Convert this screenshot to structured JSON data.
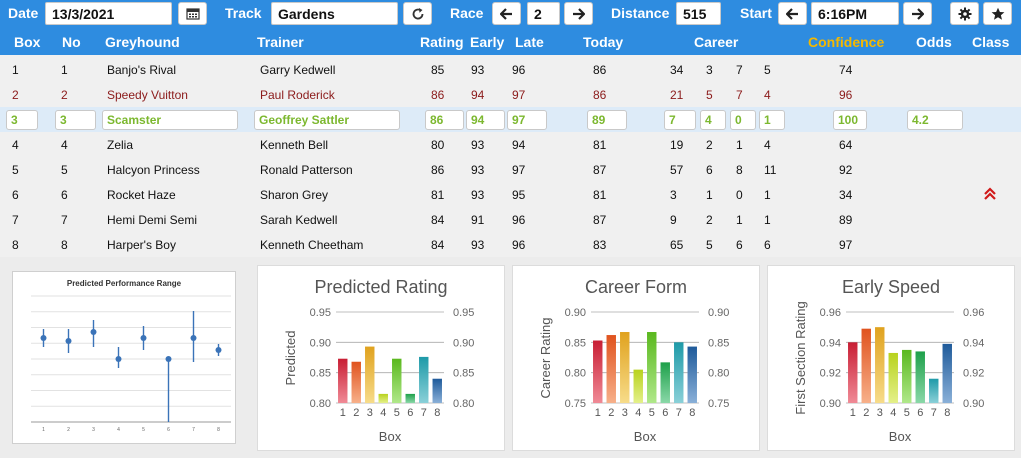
{
  "toolbar": {
    "date_label": "Date",
    "date_value": "13/3/2021",
    "track_label": "Track",
    "track_value": "Gardens",
    "race_label": "Race",
    "race_value": "2",
    "distance_label": "Distance",
    "distance_value": "515",
    "start_label": "Start",
    "start_value": "6:16PM"
  },
  "columns": {
    "box": "Box",
    "no": "No",
    "greyhound": "Greyhound",
    "trainer": "Trainer",
    "rating": "Rating",
    "early": "Early",
    "late": "Late",
    "today": "Today",
    "career": "Career",
    "confidence": "Confidence",
    "odds": "Odds",
    "class": "Class"
  },
  "colors": {
    "header_bg": "#2e8ce0",
    "confidence_header": "#f5b800",
    "selected_text": "#7cb82f",
    "red_text": "#8b1a1a",
    "class_arrow": "#d11a1a"
  },
  "rows": [
    {
      "box": "1",
      "no": "1",
      "greyhound": "Banjo's Rival",
      "trainer": "Garry Kedwell",
      "rating": "85",
      "early": "93",
      "late": "96",
      "today": "86",
      "c1": "34",
      "c2": "3",
      "c3": "7",
      "c4": "5",
      "confidence": "74",
      "odds": ""
    },
    {
      "box": "2",
      "no": "2",
      "greyhound": "Speedy Vuitton",
      "trainer": "Paul Roderick",
      "rating": "86",
      "early": "94",
      "late": "97",
      "today": "86",
      "c1": "21",
      "c2": "5",
      "c3": "7",
      "c4": "4",
      "confidence": "96",
      "odds": ""
    },
    {
      "box": "3",
      "no": "3",
      "greyhound": "Scamster",
      "trainer": "Geoffrey Sattler",
      "rating": "86",
      "early": "94",
      "late": "97",
      "today": "89",
      "c1": "7",
      "c2": "4",
      "c3": "0",
      "c4": "1",
      "confidence": "100",
      "odds": "4.2"
    },
    {
      "box": "4",
      "no": "4",
      "greyhound": "Zelia",
      "trainer": "Kenneth Bell",
      "rating": "80",
      "early": "93",
      "late": "94",
      "today": "81",
      "c1": "19",
      "c2": "2",
      "c3": "1",
      "c4": "4",
      "confidence": "64",
      "odds": ""
    },
    {
      "box": "5",
      "no": "5",
      "greyhound": "Halcyon Princess",
      "trainer": "Ronald Patterson",
      "rating": "86",
      "early": "93",
      "late": "97",
      "today": "87",
      "c1": "57",
      "c2": "6",
      "c3": "8",
      "c4": "11",
      "confidence": "92",
      "odds": ""
    },
    {
      "box": "6",
      "no": "6",
      "greyhound": "Rocket Haze",
      "trainer": "Sharon Grey",
      "rating": "81",
      "early": "93",
      "late": "95",
      "today": "81",
      "c1": "3",
      "c2": "1",
      "c3": "0",
      "c4": "1",
      "confidence": "34",
      "odds": ""
    },
    {
      "box": "7",
      "no": "7",
      "greyhound": "Hemi Demi Semi",
      "trainer": "Sarah Kedwell",
      "rating": "84",
      "early": "91",
      "late": "96",
      "today": "87",
      "c1": "9",
      "c2": "2",
      "c3": "1",
      "c4": "1",
      "confidence": "89",
      "odds": ""
    },
    {
      "box": "8",
      "no": "8",
      "greyhound": "Harper's Boy",
      "trainer": "Kenneth Cheetham",
      "rating": "84",
      "early": "93",
      "late": "96",
      "today": "83",
      "c1": "65",
      "c2": "5",
      "c3": "6",
      "c4": "6",
      "confidence": "97",
      "odds": ""
    }
  ],
  "chart_data": [
    {
      "type": "scatter",
      "title": "Predicted Performance Range",
      "categories": [
        "1",
        "2",
        "3",
        "4",
        "5",
        "6",
        "7",
        "8"
      ],
      "values": [
        0.88,
        0.875,
        0.89,
        0.845,
        0.88,
        0.845,
        0.88,
        0.86
      ],
      "low": [
        0.865,
        0.855,
        0.865,
        0.83,
        0.86,
        0.74,
        0.84,
        0.85
      ],
      "high": [
        0.895,
        0.895,
        0.91,
        0.865,
        0.9,
        0.845,
        0.925,
        0.87
      ],
      "ylim": [
        0.74,
        0.95
      ],
      "grid": true
    },
    {
      "type": "bar",
      "title": "Predicted Rating",
      "xlabel": "Box",
      "ylabel": "Predicted",
      "categories": [
        "1",
        "2",
        "3",
        "4",
        "5",
        "6",
        "7",
        "8"
      ],
      "values": [
        0.873,
        0.868,
        0.893,
        0.815,
        0.873,
        0.815,
        0.876,
        0.84
      ],
      "ylim": [
        0.8,
        0.95
      ],
      "yticks": [
        "0.80",
        "0.85",
        "0.90",
        "0.95"
      ]
    },
    {
      "type": "bar",
      "title": "Career Form",
      "xlabel": "Box",
      "ylabel": "Career Rating",
      "categories": [
        "1",
        "2",
        "3",
        "4",
        "5",
        "6",
        "7",
        "8"
      ],
      "values": [
        0.853,
        0.862,
        0.867,
        0.805,
        0.867,
        0.817,
        0.85,
        0.843
      ],
      "ylim": [
        0.75,
        0.9
      ],
      "yticks": [
        "0.75",
        "0.80",
        "0.85",
        "0.90"
      ]
    },
    {
      "type": "bar",
      "title": "Early Speed",
      "xlabel": "Box",
      "ylabel": "First Section Rating",
      "categories": [
        "1",
        "2",
        "3",
        "4",
        "5",
        "6",
        "7",
        "8"
      ],
      "values": [
        0.94,
        0.949,
        0.95,
        0.933,
        0.935,
        0.934,
        0.916,
        0.939
      ],
      "ylim": [
        0.9,
        0.96
      ],
      "yticks": [
        "0.90",
        "0.92",
        "0.94",
        "0.96"
      ]
    }
  ]
}
